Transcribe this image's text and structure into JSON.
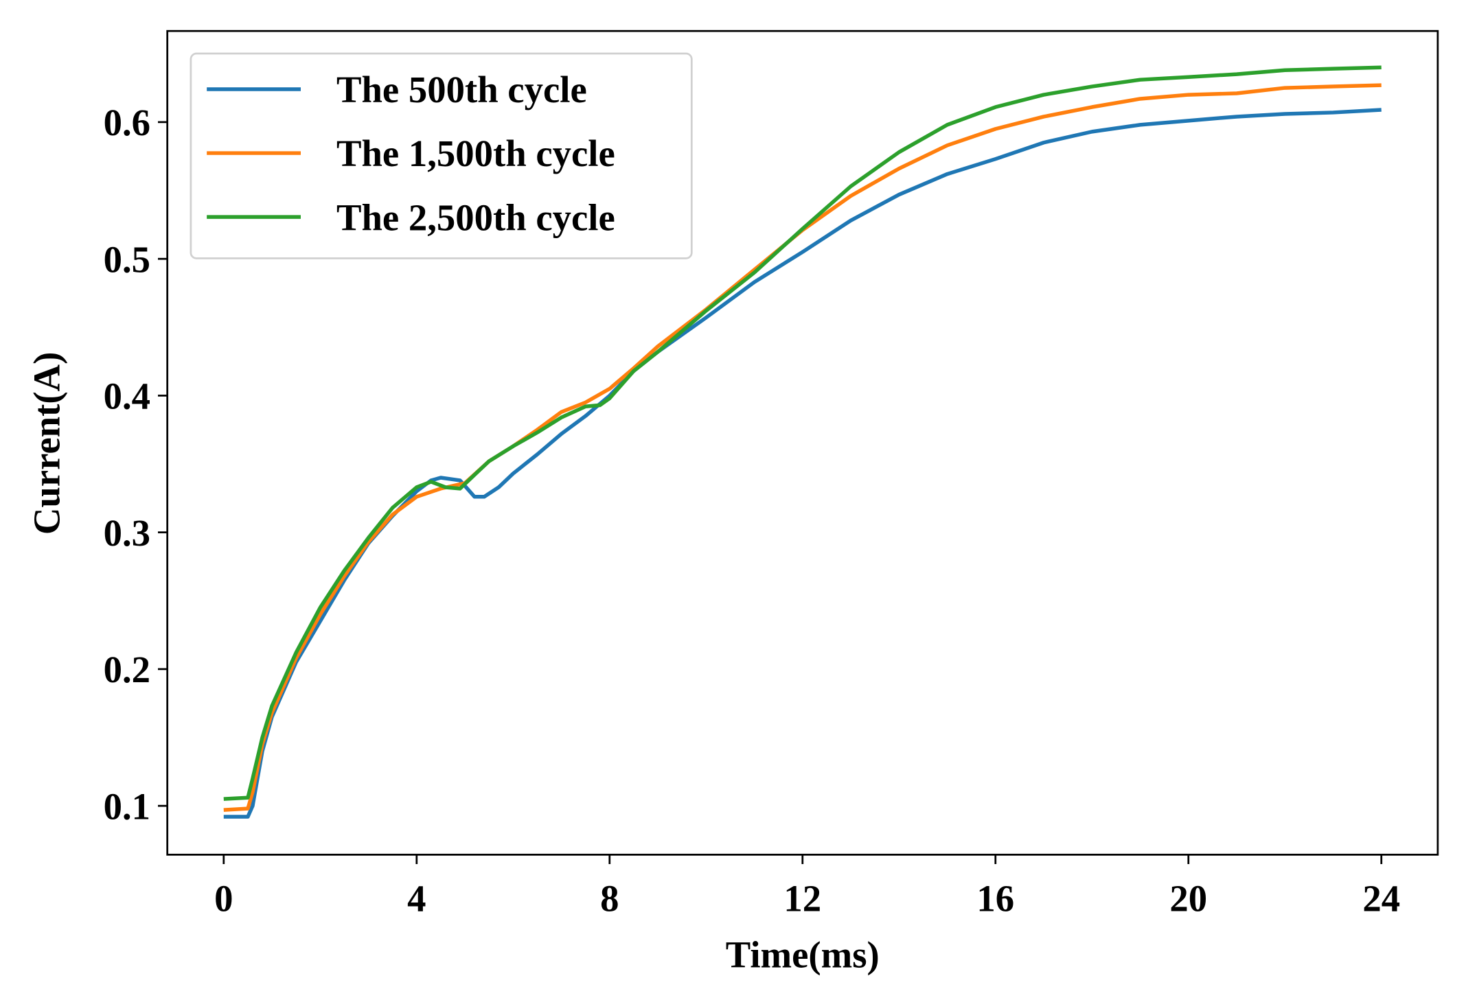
{
  "chart_data": {
    "type": "line",
    "title": "",
    "xlabel": "Time(ms)",
    "ylabel": "Current(A)",
    "xlim": [
      -1.2,
      25.2
    ],
    "ylim": [
      0.066,
      0.668
    ],
    "xticks": [
      0,
      4,
      8,
      12,
      16,
      20,
      24
    ],
    "yticks": [
      0.1,
      0.2,
      0.3,
      0.4,
      0.5,
      0.6
    ],
    "xtick_labels": [
      "0",
      "4",
      "8",
      "12",
      "16",
      "20",
      "24"
    ],
    "ytick_labels": [
      "0.1",
      "0.2",
      "0.3",
      "0.4",
      "0.5",
      "0.6"
    ],
    "grid": false,
    "legend_position": "top-left",
    "series": [
      {
        "name": "The 500th cycle",
        "color": "#1f77b4",
        "x": [
          0,
          0.5,
          0.6,
          0.8,
          1,
          1.5,
          2,
          2.5,
          3,
          3.5,
          4,
          4.3,
          4.5,
          4.9,
          5.2,
          5.4,
          5.7,
          6,
          6.5,
          7,
          7.5,
          8,
          8.5,
          9,
          10,
          11,
          12,
          13,
          14,
          15,
          16,
          17,
          18,
          19,
          20,
          21,
          22,
          23,
          24
        ],
        "y": [
          0.092,
          0.092,
          0.1,
          0.14,
          0.165,
          0.205,
          0.235,
          0.265,
          0.292,
          0.312,
          0.33,
          0.338,
          0.34,
          0.338,
          0.326,
          0.326,
          0.333,
          0.343,
          0.357,
          0.372,
          0.385,
          0.4,
          0.418,
          0.432,
          0.457,
          0.483,
          0.505,
          0.528,
          0.547,
          0.562,
          0.573,
          0.585,
          0.593,
          0.598,
          0.601,
          0.604,
          0.606,
          0.607,
          0.609
        ]
      },
      {
        "name": "The 1,500th cycle",
        "color": "#ff7f0e",
        "x": [
          0,
          0.5,
          0.6,
          0.8,
          1,
          1.5,
          2,
          2.5,
          3,
          3.5,
          4,
          4.5,
          5,
          5.5,
          6,
          6.5,
          7,
          7.5,
          8,
          8.5,
          9,
          10,
          11,
          12,
          13,
          14,
          15,
          16,
          17,
          18,
          19,
          20,
          21,
          22,
          23,
          24
        ],
        "y": [
          0.097,
          0.098,
          0.11,
          0.145,
          0.168,
          0.208,
          0.24,
          0.268,
          0.293,
          0.313,
          0.326,
          0.332,
          0.336,
          0.352,
          0.363,
          0.375,
          0.388,
          0.395,
          0.405,
          0.42,
          0.436,
          0.463,
          0.492,
          0.521,
          0.546,
          0.566,
          0.583,
          0.595,
          0.604,
          0.611,
          0.617,
          0.62,
          0.621,
          0.625,
          0.626,
          0.627
        ]
      },
      {
        "name": "The 2,500th cycle",
        "color": "#2ca02c",
        "x": [
          0,
          0.5,
          0.6,
          0.8,
          1,
          1.5,
          2,
          2.5,
          3,
          3.5,
          4,
          4.3,
          4.6,
          4.9,
          5.2,
          5.5,
          6,
          6.5,
          7,
          7.5,
          7.8,
          8,
          8.5,
          9,
          10,
          11,
          12,
          13,
          14,
          15,
          16,
          17,
          18,
          19,
          20,
          21,
          22,
          23,
          24
        ],
        "y": [
          0.105,
          0.106,
          0.12,
          0.15,
          0.173,
          0.212,
          0.245,
          0.272,
          0.296,
          0.318,
          0.333,
          0.337,
          0.333,
          0.332,
          0.342,
          0.352,
          0.363,
          0.373,
          0.384,
          0.392,
          0.393,
          0.398,
          0.418,
          0.432,
          0.462,
          0.49,
          0.522,
          0.553,
          0.578,
          0.598,
          0.611,
          0.62,
          0.626,
          0.631,
          0.633,
          0.635,
          0.638,
          0.639,
          0.64
        ]
      }
    ]
  }
}
